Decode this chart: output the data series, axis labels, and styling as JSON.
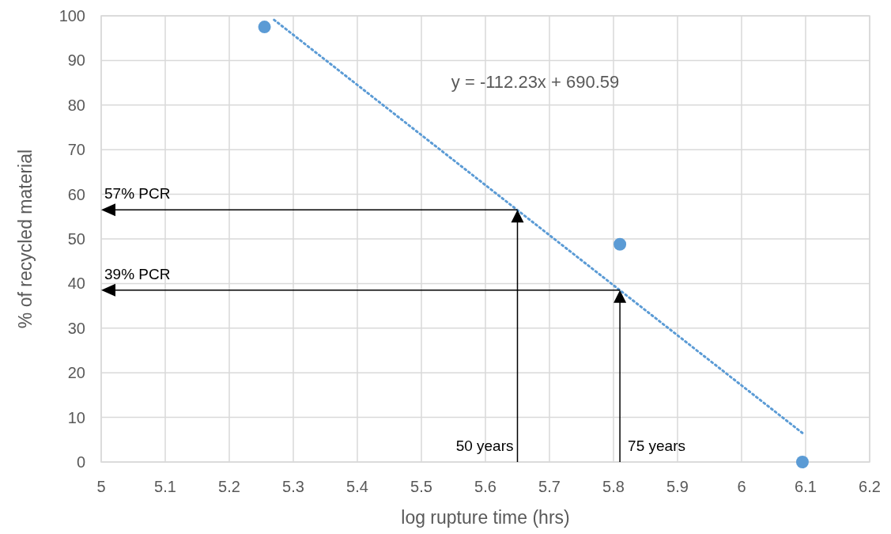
{
  "chart_data": {
    "type": "scatter",
    "xlabel": "log rupture time (hrs)",
    "ylabel": "% of recycled material",
    "xlim": [
      5,
      6.2
    ],
    "xticks": [
      5,
      5.1,
      5.2,
      5.3,
      5.4,
      5.5,
      5.6,
      5.7,
      5.8,
      5.9,
      6,
      6.1,
      6.2
    ],
    "ylim": [
      0,
      100
    ],
    "yticks": [
      0,
      10,
      20,
      30,
      40,
      50,
      60,
      70,
      80,
      90,
      100
    ],
    "grid": true,
    "marker": "circle",
    "series": [
      {
        "color": "#5b9bd5",
        "x": [
          5.255,
          5.81,
          6.095
        ],
        "values": [
          97.5,
          48.8,
          0
        ]
      },
      {
        "type": "line",
        "color": "#5b9bd5",
        "line_style": "dotted",
        "marker": "none",
        "x": [
          5.27,
          6.095
        ],
        "values": [
          99.1,
          6.5
        ]
      }
    ],
    "annotations": [
      "y = -112.23x + 690.59",
      {
        "text": "57% PCR",
        "x": 5.65,
        "y": 56.5
      },
      {
        "text": "39% PCR",
        "x": 5.81,
        "y": 38.5
      },
      "50 years",
      "75 years"
    ]
  }
}
